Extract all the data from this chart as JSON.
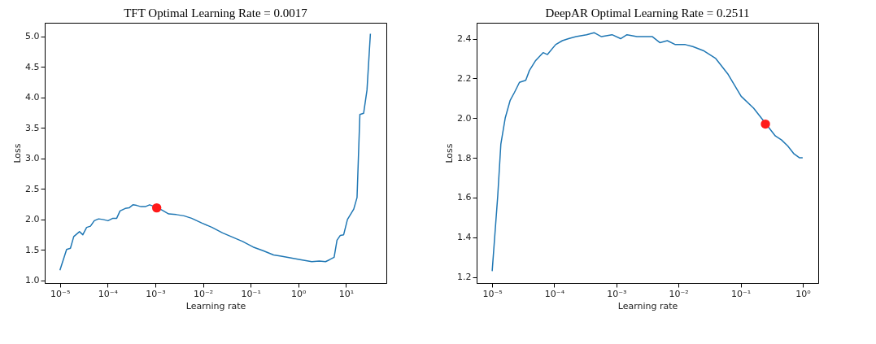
{
  "chart_data": [
    {
      "type": "line",
      "title": "TFT Optimal Learning Rate = 0.0017",
      "xlabel": "Learning rate",
      "ylabel": "Loss",
      "log": "x",
      "grid": false,
      "xlim": [
        4.8e-06,
        70
      ],
      "ylim": [
        0.96,
        5.22
      ],
      "xticks": [
        {
          "value": 1e-05,
          "label": "10⁻⁵"
        },
        {
          "value": 0.0001,
          "label": "10⁻⁴"
        },
        {
          "value": 0.001,
          "label": "10⁻³"
        },
        {
          "value": 0.01,
          "label": "10⁻²"
        },
        {
          "value": 0.1,
          "label": "10⁻¹"
        },
        {
          "value": 1,
          "label": "10⁰"
        },
        {
          "value": 10,
          "label": "10¹"
        }
      ],
      "yticks": [
        {
          "value": 1,
          "label": "1.0"
        },
        1.5,
        {
          "value": 2,
          "label": "2.0"
        },
        2.5,
        {
          "value": 3,
          "label": "3.0"
        },
        3.5,
        {
          "value": 4,
          "label": "4.0"
        },
        4.5,
        {
          "value": 5,
          "label": "5.0"
        }
      ],
      "series": [
        {
          "color": "#1f77b4",
          "marker": "none",
          "line_style": "solid",
          "x": [
            1e-05,
            1.38e-05,
            1.66e-05,
            1.95e-05,
            2.57e-05,
            3.02e-05,
            3.63e-05,
            4.37e-05,
            5.25e-05,
            6.46e-05,
            7.94e-05,
            0.000102,
            0.000129,
            0.000155,
            0.000182,
            0.000234,
            0.000282,
            0.000339,
            0.000407,
            0.000501,
            0.000617,
            0.000759,
            0.00107,
            0.00141,
            0.00191,
            0.00275,
            0.00398,
            0.00575,
            0.00955,
            0.0155,
            0.0257,
            0.0417,
            0.0676,
            0.112,
            0.182,
            0.302,
            0.437,
            0.708,
            1.15,
            1.91,
            2.75,
            3.72,
            4.47,
            5.62,
            6.46,
            7.59,
            8.91,
            10.7,
            14.5,
            17.0,
            19.5,
            23.4,
            27.5,
            32.4
          ],
          "values": [
            1.17,
            1.51,
            1.53,
            1.72,
            1.8,
            1.75,
            1.87,
            1.89,
            1.98,
            2.01,
            2.0,
            1.98,
            2.02,
            2.02,
            2.14,
            2.18,
            2.19,
            2.24,
            2.23,
            2.21,
            2.21,
            2.24,
            2.2,
            2.15,
            2.09,
            2.08,
            2.06,
            2.02,
            1.94,
            1.87,
            1.78,
            1.71,
            1.64,
            1.55,
            1.49,
            1.42,
            1.4,
            1.37,
            1.34,
            1.31,
            1.32,
            1.31,
            1.34,
            1.38,
            1.66,
            1.74,
            1.75,
            2.0,
            2.17,
            2.36,
            3.72,
            3.74,
            4.12,
            5.04
          ]
        },
        {
          "type": "scatter",
          "color": "#ff1a1a",
          "marker": "circle",
          "x": [
            0.00107
          ],
          "values": [
            2.19
          ]
        }
      ]
    },
    {
      "type": "line",
      "title": "DeepAR Optimal Learning Rate = 0.2511",
      "xlabel": "Learning rate",
      "ylabel": "Loss",
      "log": "x",
      "grid": false,
      "xlim": [
        5.62e-06,
        1.78
      ],
      "ylim": [
        1.17,
        2.48
      ],
      "xticks": [
        {
          "value": 1e-05,
          "label": "10⁻⁵"
        },
        {
          "value": 0.0001,
          "label": "10⁻⁴"
        },
        {
          "value": 0.001,
          "label": "10⁻³"
        },
        {
          "value": 0.01,
          "label": "10⁻²"
        },
        {
          "value": 0.1,
          "label": "10⁻¹"
        },
        {
          "value": 1,
          "label": "10⁰"
        }
      ],
      "yticks": [
        1.2,
        1.4,
        1.6,
        1.8,
        {
          "value": 2,
          "label": "2.0"
        },
        2.2,
        2.4
      ],
      "series": [
        {
          "color": "#1f77b4",
          "marker": "none",
          "line_style": "solid",
          "x": [
            1e-05,
            1.23e-05,
            1.38e-05,
            1.62e-05,
            1.95e-05,
            2.29e-05,
            2.75e-05,
            3.47e-05,
            3.98e-05,
            5.01e-05,
            6.61e-05,
            7.76e-05,
            0.000105,
            0.000135,
            0.00017,
            0.000224,
            0.000331,
            0.000437,
            0.000575,
            0.000851,
            0.00117,
            0.00148,
            0.00214,
            0.00288,
            0.0038,
            0.00501,
            0.00661,
            0.00891,
            0.0129,
            0.017,
            0.0251,
            0.0398,
            0.0631,
            0.102,
            0.162,
            0.257,
            0.363,
            0.457,
            0.575,
            0.724,
            0.891,
            1
          ],
          "values": [
            1.23,
            1.61,
            1.87,
            2.0,
            2.09,
            2.13,
            2.18,
            2.19,
            2.24,
            2.29,
            2.33,
            2.32,
            2.37,
            2.39,
            2.4,
            2.41,
            2.42,
            2.43,
            2.41,
            2.42,
            2.4,
            2.42,
            2.41,
            2.41,
            2.41,
            2.38,
            2.39,
            2.37,
            2.37,
            2.36,
            2.34,
            2.3,
            2.22,
            2.11,
            2.05,
            1.97,
            1.91,
            1.89,
            1.86,
            1.82,
            1.8,
            1.8
          ]
        },
        {
          "type": "scatter",
          "color": "#ff1a1a",
          "marker": "circle",
          "x": [
            0.2511
          ],
          "values": [
            1.97
          ]
        }
      ]
    }
  ]
}
